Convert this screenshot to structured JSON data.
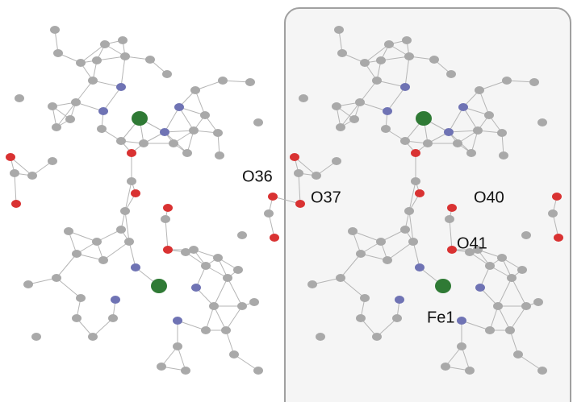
{
  "left_panel": {
    "labels": [
      "O36"
    ]
  },
  "right_panel": {
    "labels": [
      "O37",
      "O40",
      "O41",
      "Fe1"
    ]
  }
}
